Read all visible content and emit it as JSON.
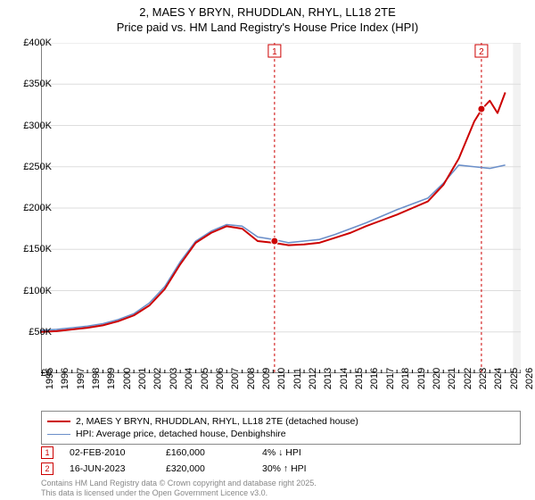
{
  "title_line1": "2, MAES Y BRYN, RHUDDLAN, RHYL, LL18 2TE",
  "title_line2": "Price paid vs. HM Land Registry's House Price Index (HPI)",
  "chart": {
    "type": "line",
    "x_years": [
      1995,
      1996,
      1997,
      1998,
      1999,
      2000,
      2001,
      2002,
      2003,
      2004,
      2005,
      2006,
      2007,
      2008,
      2009,
      2010,
      2011,
      2012,
      2013,
      2014,
      2015,
      2016,
      2017,
      2018,
      2019,
      2020,
      2021,
      2022,
      2023,
      2024,
      2025,
      2026
    ],
    "ylim": [
      0,
      400000
    ],
    "yticks": [
      0,
      50000,
      100000,
      150000,
      200000,
      250000,
      300000,
      350000,
      400000
    ],
    "ytick_labels": [
      "£0",
      "£50K",
      "£100K",
      "£150K",
      "£200K",
      "£250K",
      "£300K",
      "£350K",
      "£400K"
    ],
    "plot_bg": "#ffffff",
    "future_band_color": "#f2f2f2",
    "future_start_year": 2025.5,
    "grid_color": "#dddddd",
    "axis_color": "#000000",
    "sale_line_color": "#cc0000",
    "sale_line_dash": "3,3",
    "series": [
      {
        "name": "hpi_line",
        "label": "HPI: Average price, detached house, Denbighshire",
        "color": "#6b8fc9",
        "width": 1.6,
        "data": [
          [
            1995,
            52000
          ],
          [
            1996,
            53000
          ],
          [
            1997,
            55000
          ],
          [
            1998,
            57000
          ],
          [
            1999,
            60000
          ],
          [
            2000,
            65000
          ],
          [
            2001,
            72000
          ],
          [
            2002,
            85000
          ],
          [
            2003,
            105000
          ],
          [
            2004,
            135000
          ],
          [
            2005,
            160000
          ],
          [
            2006,
            172000
          ],
          [
            2007,
            180000
          ],
          [
            2008,
            178000
          ],
          [
            2009,
            165000
          ],
          [
            2010,
            162000
          ],
          [
            2011,
            158000
          ],
          [
            2012,
            160000
          ],
          [
            2013,
            162000
          ],
          [
            2014,
            168000
          ],
          [
            2015,
            175000
          ],
          [
            2016,
            182000
          ],
          [
            2017,
            190000
          ],
          [
            2018,
            198000
          ],
          [
            2019,
            205000
          ],
          [
            2020,
            212000
          ],
          [
            2021,
            230000
          ],
          [
            2022,
            252000
          ],
          [
            2023,
            250000
          ],
          [
            2024,
            248000
          ],
          [
            2025,
            252000
          ]
        ]
      },
      {
        "name": "price_paid_line",
        "label": "2, MAES Y BRYN, RHUDDLAN, RHYL, LL18 2TE (detached house)",
        "color": "#cc0000",
        "width": 2.0,
        "data": [
          [
            1995,
            50000
          ],
          [
            1996,
            51000
          ],
          [
            1997,
            53000
          ],
          [
            1998,
            55000
          ],
          [
            1999,
            58000
          ],
          [
            2000,
            63000
          ],
          [
            2001,
            70000
          ],
          [
            2002,
            82000
          ],
          [
            2003,
            102000
          ],
          [
            2004,
            132000
          ],
          [
            2005,
            158000
          ],
          [
            2006,
            170000
          ],
          [
            2007,
            178000
          ],
          [
            2008,
            175000
          ],
          [
            2009,
            160000
          ],
          [
            2010,
            158000
          ],
          [
            2011,
            155000
          ],
          [
            2012,
            156000
          ],
          [
            2013,
            158000
          ],
          [
            2014,
            164000
          ],
          [
            2015,
            170000
          ],
          [
            2016,
            178000
          ],
          [
            2017,
            185000
          ],
          [
            2018,
            192000
          ],
          [
            2019,
            200000
          ],
          [
            2020,
            208000
          ],
          [
            2021,
            228000
          ],
          [
            2022,
            260000
          ],
          [
            2023,
            305000
          ],
          [
            2023.5,
            320000
          ],
          [
            2024,
            330000
          ],
          [
            2024.5,
            315000
          ],
          [
            2025,
            340000
          ]
        ]
      }
    ],
    "sale_markers": [
      {
        "n": "1",
        "year": 2010.09,
        "price": 160000,
        "date_label": "02-FEB-2010",
        "price_label": "£160,000",
        "delta_label": "4% ↓ HPI"
      },
      {
        "n": "2",
        "year": 2023.46,
        "price": 320000,
        "date_label": "16-JUN-2023",
        "price_label": "£320,000",
        "delta_label": "30% ↑ HPI"
      }
    ],
    "sale_dot_radius": 4
  },
  "attribution_line1": "Contains HM Land Registry data © Crown copyright and database right 2025.",
  "attribution_line2": "This data is licensed under the Open Government Licence v3.0."
}
